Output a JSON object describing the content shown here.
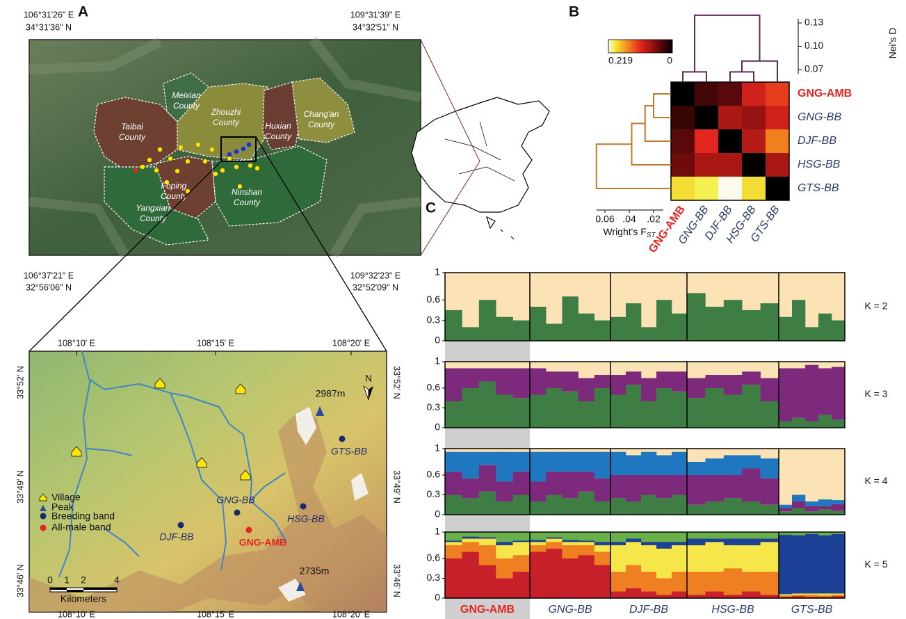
{
  "panel_labels": [
    "A",
    "B",
    "C"
  ],
  "overview_map": {
    "coords": [
      "106°31'26\" E",
      "34°31'36\" N",
      "109°31'39\" E",
      "34°32'51\" N",
      "106°37'21\" E",
      "32°56'06\" N",
      "109°32'23\" E",
      "32°52'09\" N"
    ],
    "counties": [
      [
        "Meixian",
        "County"
      ],
      [
        "Zhouzhi",
        "County"
      ],
      [
        "Taibai",
        "County"
      ],
      [
        "Huxian",
        "County"
      ],
      [
        "Chang'an",
        "County"
      ],
      [
        "Foping",
        "County"
      ],
      [
        "Yangxian",
        "County"
      ],
      [
        "Ninshan",
        "County"
      ]
    ]
  },
  "detail_map": {
    "x_ticks": [
      "108°10' E",
      "108°15' E",
      "108°20' E"
    ],
    "y_ticks": [
      "33°52' N",
      "33°49' N",
      "33°46' N"
    ],
    "north": "N",
    "peaks": [
      "2987m",
      "2735m"
    ],
    "bands": [
      "GTS-BB",
      "GNG-BB",
      "HSG-BB",
      "DJF-BB",
      "GNG-AMB"
    ],
    "legend": [
      "Village",
      "Peak",
      "Breeding band",
      "All-male band"
    ],
    "scalebar": {
      "ticks": [
        0,
        1,
        2,
        4
      ],
      "unit": "Kilometers"
    }
  },
  "populations": [
    "GNG-AMB",
    "GNG-BB",
    "DJF-BB",
    "HSG-BB",
    "GTS-BB"
  ],
  "chart_data": [
    {
      "type": "heatmap",
      "categories": [
        "GNG-AMB",
        "GNG-BB",
        "DJF-BB",
        "HSG-BB",
        "GTS-BB"
      ],
      "values": [
        [
          0,
          0.03,
          0.04,
          0.1,
          0.12
        ],
        [
          0.025,
          0,
          0.08,
          0.07,
          0.1
        ],
        [
          0.04,
          0.11,
          0,
          0.085,
          0.15
        ],
        [
          0.05,
          0.08,
          0.08,
          0,
          0.08
        ],
        [
          0.19,
          0.2,
          0.219,
          0.19,
          0
        ]
      ],
      "clim": [
        0.219,
        0
      ],
      "dendrogram_top": {
        "label": "Nei's D",
        "yticks": [
          0.13,
          {
            "value": 0.1,
            "label": "0.10"
          },
          0.07
        ],
        "merges": [
          [
            0,
            1,
            0.067
          ],
          [
            2,
            3,
            0.067
          ],
          [
            6,
            4,
            0.081
          ],
          [
            5,
            7,
            0.14
          ]
        ]
      },
      "dendrogram_left": {
        "label": "Wright's F",
        "label_sub": "ST",
        "xticks": [
          0.06,
          {
            "value": 0.04,
            "label": ".04"
          },
          {
            "value": 0.02,
            "label": ".02"
          }
        ],
        "merges": [
          [
            0,
            1,
            0.02
          ],
          [
            5,
            2,
            0.027
          ],
          [
            6,
            3,
            0.038
          ],
          [
            7,
            4,
            0.067
          ]
        ]
      }
    },
    {
      "type": "structure",
      "label": "K = 2",
      "ylim": [
        0,
        1
      ],
      "yticks": [
        0,
        0.3,
        0.6,
        1
      ],
      "background": "#fbe3b5",
      "series": [
        {
          "color": "#3e7e45",
          "values": [
            0.45,
            0.2,
            0.6,
            0.35,
            0.3,
            0.5,
            0.25,
            0.65,
            0.4,
            0.3,
            0.35,
            0.55,
            0.2,
            0.6,
            0.4,
            0.7,
            0.5,
            0.6,
            0.45,
            0.55,
            0.35,
            0.6,
            0.2,
            0.4,
            0.3
          ]
        }
      ]
    },
    {
      "type": "structure",
      "label": "K = 3",
      "ylim": [
        0,
        1
      ],
      "yticks": [
        0,
        0.3,
        0.6,
        1
      ],
      "background": "#fbe3b5",
      "series": [
        {
          "color": "#3e7e45",
          "values": [
            0.4,
            0.6,
            0.7,
            0.5,
            0.45,
            0.5,
            0.6,
            0.55,
            0.4,
            0.6,
            0.5,
            0.65,
            0.4,
            0.6,
            0.55,
            0.45,
            0.6,
            0.5,
            0.65,
            0.4,
            0.1,
            0.15,
            0.1,
            0.2,
            0.12
          ]
        },
        {
          "color": "#7d2a7d",
          "values": [
            0.5,
            0.3,
            0.2,
            0.4,
            0.45,
            0.4,
            0.25,
            0.3,
            0.35,
            0.2,
            0.3,
            0.2,
            0.35,
            0.25,
            0.3,
            0.3,
            0.2,
            0.3,
            0.2,
            0.35,
            0.8,
            0.75,
            0.85,
            0.7,
            0.8
          ]
        }
      ]
    },
    {
      "type": "structure",
      "label": "K = 4",
      "ylim": [
        0,
        1
      ],
      "yticks": [
        0,
        0.3,
        0.6,
        1
      ],
      "background": "#fbe3b5",
      "series": [
        {
          "color": "#3e7e45",
          "values": [
            0.3,
            0.25,
            0.35,
            0.2,
            0.3,
            0.2,
            0.3,
            0.25,
            0.35,
            0.2,
            0.25,
            0.2,
            0.3,
            0.25,
            0.3,
            0.15,
            0.2,
            0.25,
            0.2,
            0.15,
            0.05,
            0.1,
            0.05,
            0.08,
            0.06
          ]
        },
        {
          "color": "#7d2a7d",
          "values": [
            0.35,
            0.3,
            0.4,
            0.3,
            0.35,
            0.3,
            0.35,
            0.4,
            0.3,
            0.35,
            0.35,
            0.4,
            0.3,
            0.35,
            0.3,
            0.45,
            0.4,
            0.35,
            0.5,
            0.4,
            0.05,
            0.1,
            0.08,
            0.05,
            0.1
          ]
        },
        {
          "color": "#1f78bf",
          "values": [
            0.3,
            0.4,
            0.2,
            0.45,
            0.3,
            0.45,
            0.3,
            0.3,
            0.3,
            0.4,
            0.35,
            0.3,
            0.35,
            0.3,
            0.35,
            0.2,
            0.25,
            0.3,
            0.2,
            0.3,
            0.05,
            0.1,
            0.07,
            0.1,
            0.06
          ]
        }
      ]
    },
    {
      "type": "structure",
      "label": "K = 5",
      "ylim": [
        0,
        1
      ],
      "yticks": [
        0,
        0.3,
        0.6,
        1
      ],
      "background": "#69b04a",
      "series": [
        {
          "color": "#c8202a",
          "values": [
            0.6,
            0.7,
            0.5,
            0.3,
            0.4,
            0.7,
            0.75,
            0.6,
            0.65,
            0.5,
            0.1,
            0.15,
            0.1,
            0.05,
            0.1,
            0.05,
            0.1,
            0.05,
            0.1,
            0.05,
            0.02,
            0.03,
            0.02,
            0.02,
            0.03
          ]
        },
        {
          "color": "#ee8022",
          "values": [
            0.2,
            0.15,
            0.3,
            0.3,
            0.25,
            0.1,
            0.1,
            0.2,
            0.15,
            0.2,
            0.3,
            0.35,
            0.3,
            0.25,
            0.3,
            0.35,
            0.3,
            0.4,
            0.3,
            0.35,
            0.02,
            0.02,
            0.03,
            0.02,
            0.02
          ]
        },
        {
          "color": "#f6e64a",
          "values": [
            0.05,
            0.05,
            0.1,
            0.2,
            0.2,
            0.05,
            0.05,
            0.05,
            0.05,
            0.1,
            0.4,
            0.35,
            0.4,
            0.45,
            0.4,
            0.4,
            0.45,
            0.35,
            0.4,
            0.45,
            0.02,
            0.02,
            0.02,
            0.03,
            0.02
          ]
        },
        {
          "color": "#1d4196",
          "values": [
            0.02,
            0.03,
            0.02,
            0.05,
            0.02,
            0.03,
            0.02,
            0.03,
            0.02,
            0.05,
            0.05,
            0.05,
            0.05,
            0.1,
            0.05,
            0.1,
            0.05,
            0.1,
            0.1,
            0.05,
            0.9,
            0.88,
            0.9,
            0.88,
            0.9
          ]
        }
      ]
    }
  ]
}
